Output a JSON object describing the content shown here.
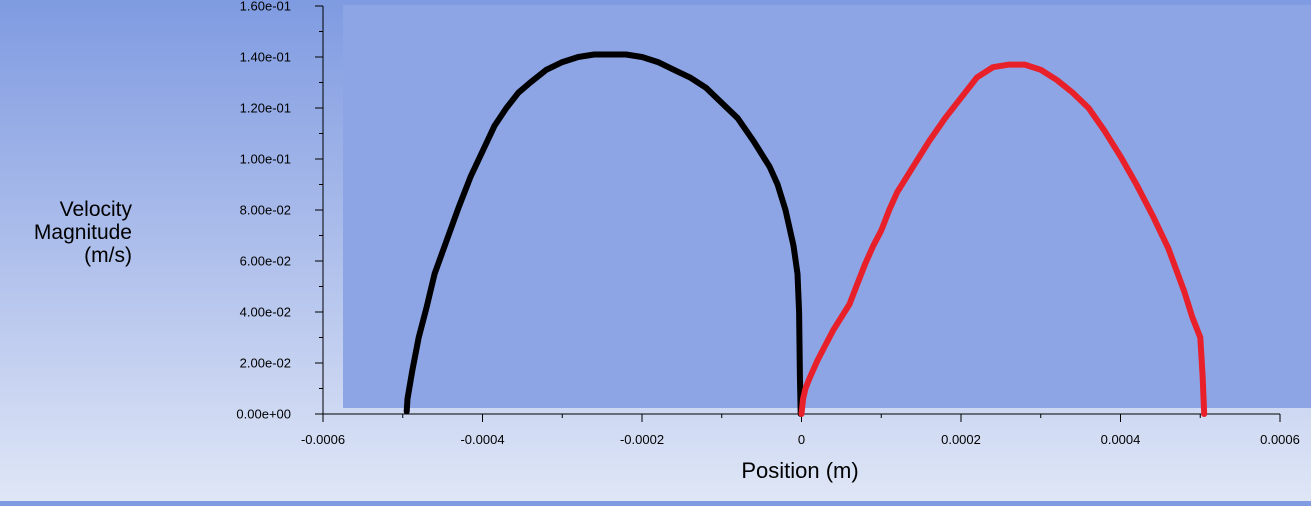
{
  "chart_data": {
    "type": "line",
    "title": "",
    "xlabel": "Position (m)",
    "ylabel_lines": [
      "Velocity",
      "Magnitude",
      "(m/s)"
    ],
    "xlim": [
      -0.0006,
      0.0006
    ],
    "ylim": [
      0,
      0.16
    ],
    "x_ticks": [
      -0.0006,
      -0.0004,
      -0.0002,
      0,
      0.0002,
      0.0004,
      0.0006
    ],
    "x_tick_labels": [
      "-0.0006",
      "-0.0004",
      "-0.0002",
      "0",
      "0.0002",
      "0.0004",
      "0.0006"
    ],
    "y_ticks": [
      0,
      0.02,
      0.04,
      0.06,
      0.08,
      0.1,
      0.12,
      0.14,
      0.16
    ],
    "y_tick_labels": [
      "0.00e+00",
      "2.00e-02",
      "4.00e-02",
      "6.00e-02",
      "8.00e-02",
      "1.00e-01",
      "1.20e-01",
      "1.40e-01",
      "1.60e-01"
    ],
    "grid": false,
    "series": [
      {
        "color": "#000000",
        "x": [
          -0.000495,
          -0.000494,
          -0.000488,
          -0.00048,
          -0.00047,
          -0.00046,
          -0.000445,
          -0.00043,
          -0.000415,
          -0.0004,
          -0.000385,
          -0.00037,
          -0.000355,
          -0.00034,
          -0.00032,
          -0.0003,
          -0.00028,
          -0.00026,
          -0.00024,
          -0.00022,
          -0.0002,
          -0.00018,
          -0.00016,
          -0.00014,
          -0.00012,
          -0.0001,
          -8e-05,
          -6e-05,
          -4e-05,
          -3e-05,
          -2e-05,
          -1e-05,
          -5e-06,
          -3e-06,
          -2e-06,
          -1e-06
        ],
        "y": [
          0.001,
          0.006,
          0.017,
          0.03,
          0.042,
          0.055,
          0.068,
          0.081,
          0.093,
          0.103,
          0.113,
          0.12,
          0.126,
          0.13,
          0.135,
          0.138,
          0.14,
          0.141,
          0.141,
          0.141,
          0.14,
          0.138,
          0.135,
          0.132,
          0.128,
          0.122,
          0.116,
          0.107,
          0.097,
          0.09,
          0.08,
          0.066,
          0.055,
          0.04,
          0.015,
          0.0
        ]
      },
      {
        "color": "#e8202a",
        "x": [
          0.0,
          2e-06,
          5e-06,
          1e-05,
          2e-05,
          3e-05,
          4e-05,
          5e-05,
          6e-05,
          7e-05,
          8e-05,
          9e-05,
          0.0001,
          0.00011,
          0.00012,
          0.00014,
          0.00016,
          0.00018,
          0.0002,
          0.00022,
          0.00024,
          0.00026,
          0.00028,
          0.0003,
          0.00032,
          0.00034,
          0.00036,
          0.00038,
          0.0004,
          0.00042,
          0.00044,
          0.00046,
          0.00048,
          0.00049,
          0.0005,
          0.000503,
          0.000505
        ],
        "y": [
          0.0,
          0.006,
          0.01,
          0.014,
          0.021,
          0.027,
          0.033,
          0.038,
          0.043,
          0.051,
          0.059,
          0.066,
          0.072,
          0.08,
          0.087,
          0.097,
          0.107,
          0.116,
          0.124,
          0.132,
          0.136,
          0.137,
          0.137,
          0.135,
          0.131,
          0.126,
          0.12,
          0.111,
          0.101,
          0.09,
          0.078,
          0.065,
          0.048,
          0.038,
          0.03,
          0.015,
          0.0
        ]
      }
    ]
  }
}
